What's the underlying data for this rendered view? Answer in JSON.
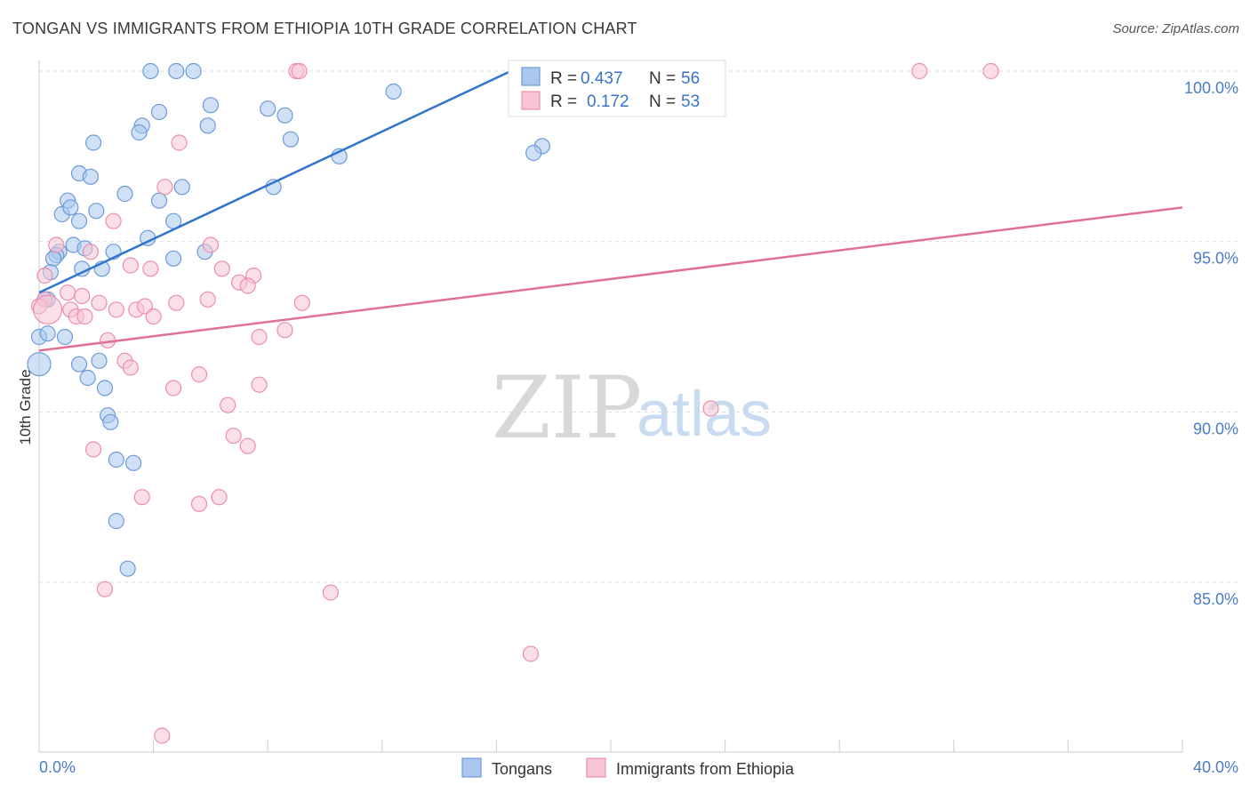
{
  "header": {
    "title": "TONGAN VS IMMIGRANTS FROM ETHIOPIA 10TH GRADE CORRELATION CHART",
    "source": "Source: ZipAtlas.com"
  },
  "watermark": {
    "zip": "ZIP",
    "atlas": "atlas"
  },
  "colors": {
    "blue_fill": "#aac8ee",
    "blue_stroke": "#6d9ad8",
    "blue_line": "#2f74cf",
    "pink_fill": "#f7c4d3",
    "pink_stroke": "#e98fab",
    "pink_line": "#e0709a",
    "grid": "#dddddd",
    "axis_text": "#4a7cc7"
  },
  "chart_data": {
    "type": "scatter",
    "title": "TONGAN VS IMMIGRANTS FROM ETHIOPIA 10TH GRADE CORRELATION CHART",
    "xlabel": "",
    "ylabel": "10th Grade",
    "xlim": [
      0,
      40
    ],
    "ylim": [
      80,
      100.8
    ],
    "x_tick_labels": [
      "0.0%",
      "40.0%"
    ],
    "y_ticks": [
      85,
      90,
      95,
      100
    ],
    "y_tick_labels": [
      "85.0%",
      "90.0%",
      "95.0%",
      "100.0%"
    ],
    "legend": [
      {
        "name": "Tongans",
        "r_label": "R =",
        "r_value": "0.437",
        "n_label": "N =",
        "n_value": "56"
      },
      {
        "name": "Immigrants from Ethiopia",
        "r_label": "R =",
        "r_value": "0.172",
        "n_label": "N =",
        "n_value": "53"
      }
    ],
    "series": [
      {
        "name": "Tongans",
        "color": "blue",
        "trend": {
          "x": [
            0.0,
            16.5
          ],
          "y": [
            93.5,
            100.0
          ]
        },
        "points": [
          [
            3.9,
            100
          ],
          [
            4.8,
            100
          ],
          [
            5.4,
            100
          ],
          [
            6.0,
            99
          ],
          [
            4.2,
            98.8
          ],
          [
            8.0,
            98.9
          ],
          [
            8.6,
            98.7
          ],
          [
            12.4,
            99.4
          ],
          [
            3.6,
            98.4
          ],
          [
            3.5,
            98.2
          ],
          [
            5.9,
            98.4
          ],
          [
            1.9,
            97.9
          ],
          [
            8.8,
            98.0
          ],
          [
            10.5,
            97.5
          ],
          [
            17.6,
            97.8
          ],
          [
            17.3,
            97.6
          ],
          [
            1.4,
            97.0
          ],
          [
            1.8,
            96.9
          ],
          [
            3.0,
            96.4
          ],
          [
            5.0,
            96.6
          ],
          [
            8.2,
            96.6
          ],
          [
            1.0,
            96.2
          ],
          [
            4.2,
            96.2
          ],
          [
            0.8,
            95.8
          ],
          [
            1.1,
            96.0
          ],
          [
            2.0,
            95.9
          ],
          [
            1.4,
            95.6
          ],
          [
            4.7,
            95.6
          ],
          [
            3.8,
            95.1
          ],
          [
            1.2,
            94.9
          ],
          [
            0.7,
            94.7
          ],
          [
            0.6,
            94.6
          ],
          [
            1.6,
            94.8
          ],
          [
            2.6,
            94.7
          ],
          [
            5.8,
            94.7
          ],
          [
            4.7,
            94.5
          ],
          [
            0.5,
            94.5
          ],
          [
            1.5,
            94.2
          ],
          [
            2.2,
            94.2
          ],
          [
            0.4,
            94.1
          ],
          [
            0.3,
            93.3
          ],
          [
            0.0,
            92.2
          ],
          [
            0.3,
            92.3
          ],
          [
            0.9,
            92.2
          ],
          [
            2.1,
            91.5
          ],
          [
            1.4,
            91.4
          ],
          [
            1.7,
            91.0
          ],
          [
            2.3,
            90.7
          ],
          [
            2.4,
            89.9
          ],
          [
            2.5,
            89.7
          ],
          [
            2.7,
            88.6
          ],
          [
            3.3,
            88.5
          ],
          [
            2.7,
            86.8
          ],
          [
            3.1,
            85.4
          ],
          [
            0.0,
            91.4
          ],
          [
            0.2,
            93.3
          ]
        ]
      },
      {
        "name": "Immigrants from Ethiopia",
        "color": "pink",
        "trend": {
          "x": [
            0.0,
            40.0
          ],
          "y": [
            91.8,
            96.0
          ]
        },
        "points": [
          [
            9.0,
            100
          ],
          [
            9.1,
            100
          ],
          [
            30.8,
            100
          ],
          [
            33.3,
            100
          ],
          [
            4.9,
            97.9
          ],
          [
            4.4,
            96.6
          ],
          [
            2.6,
            95.6
          ],
          [
            0.6,
            94.9
          ],
          [
            1.8,
            94.7
          ],
          [
            6.0,
            94.9
          ],
          [
            3.2,
            94.3
          ],
          [
            3.9,
            94.2
          ],
          [
            6.4,
            94.2
          ],
          [
            0.2,
            94.0
          ],
          [
            7.5,
            94.0
          ],
          [
            7.0,
            93.8
          ],
          [
            7.3,
            93.7
          ],
          [
            0.2,
            93.3
          ],
          [
            1.0,
            93.5
          ],
          [
            1.5,
            93.4
          ],
          [
            2.1,
            93.2
          ],
          [
            2.7,
            93.0
          ],
          [
            3.4,
            93.0
          ],
          [
            3.7,
            93.1
          ],
          [
            4.8,
            93.2
          ],
          [
            5.9,
            93.3
          ],
          [
            9.2,
            93.2
          ],
          [
            0.0,
            93.1
          ],
          [
            1.1,
            93.0
          ],
          [
            1.3,
            92.8
          ],
          [
            1.6,
            92.8
          ],
          [
            4.0,
            92.8
          ],
          [
            8.6,
            92.4
          ],
          [
            2.4,
            92.1
          ],
          [
            7.7,
            92.2
          ],
          [
            3.0,
            91.5
          ],
          [
            3.2,
            91.3
          ],
          [
            5.6,
            91.1
          ],
          [
            4.7,
            90.7
          ],
          [
            7.7,
            90.8
          ],
          [
            6.6,
            90.2
          ],
          [
            23.5,
            90.1
          ],
          [
            1.9,
            88.9
          ],
          [
            6.8,
            89.3
          ],
          [
            7.3,
            89.0
          ],
          [
            3.6,
            87.5
          ],
          [
            5.6,
            87.3
          ],
          [
            6.3,
            87.5
          ],
          [
            2.3,
            84.8
          ],
          [
            10.2,
            84.7
          ],
          [
            17.2,
            82.9
          ],
          [
            4.3,
            80.5
          ],
          [
            0.3,
            93.0
          ]
        ]
      }
    ]
  }
}
